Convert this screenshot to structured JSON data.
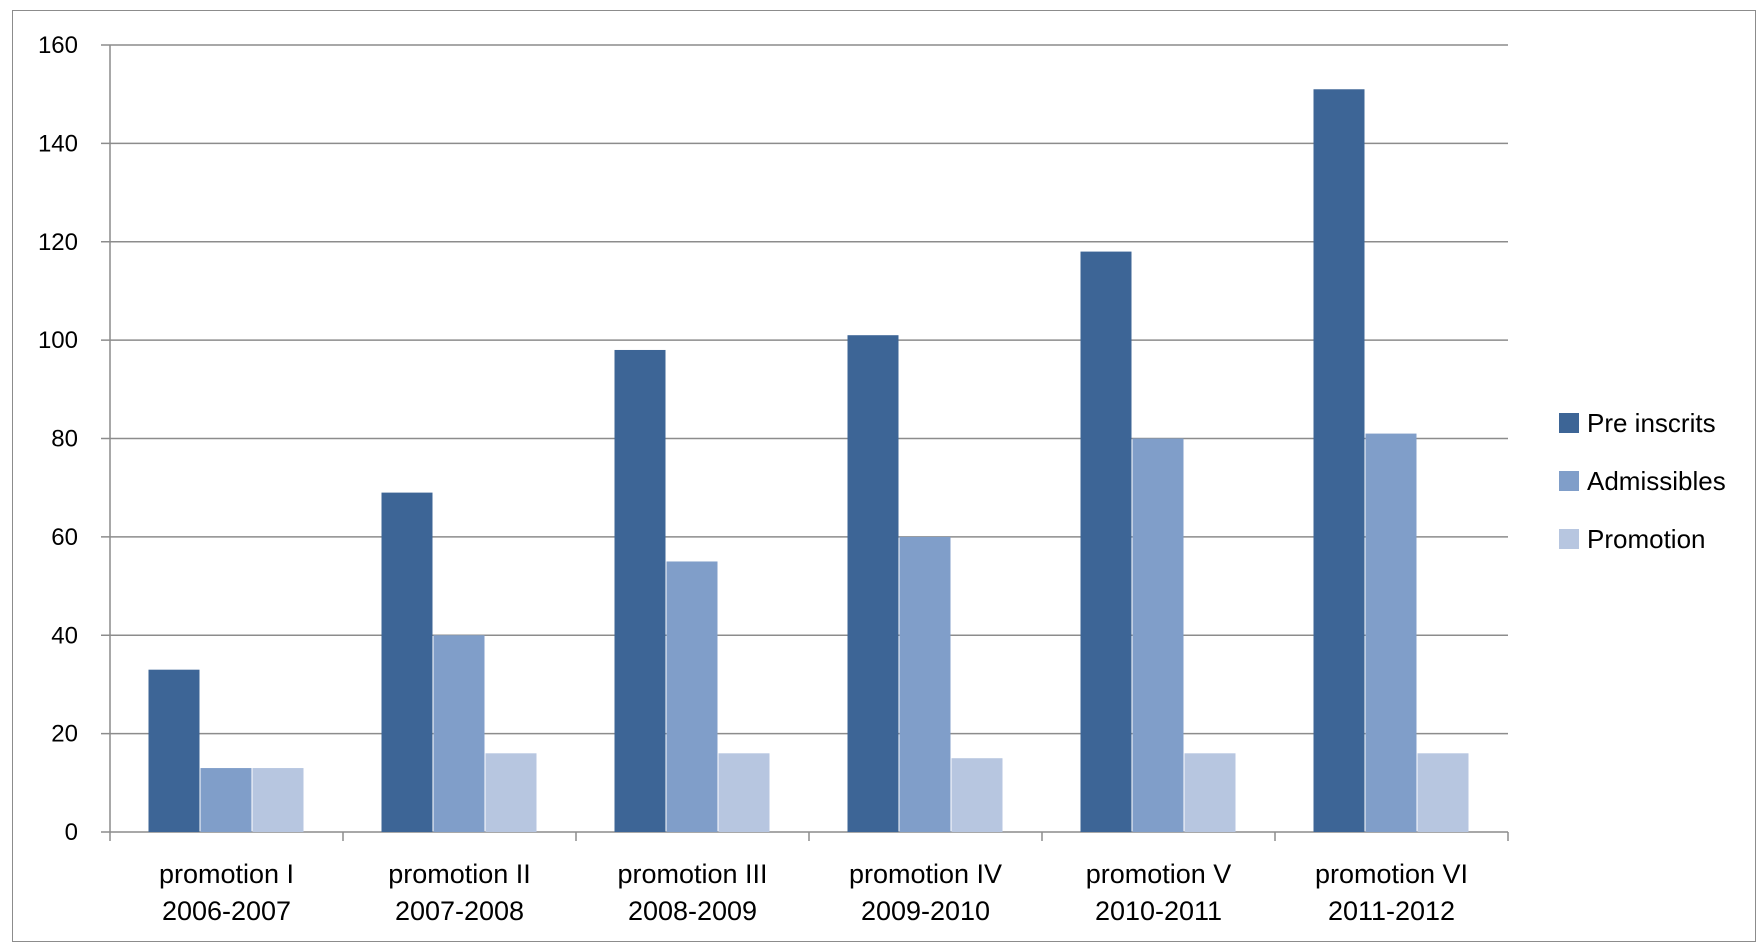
{
  "chart_data": {
    "type": "bar",
    "categories": [
      [
        "promotion I",
        "2006-2007"
      ],
      [
        "promotion II",
        "2007-2008"
      ],
      [
        "promotion III",
        "2008-2009"
      ],
      [
        "promotion IV",
        "2009-2010"
      ],
      [
        "promotion V",
        "2010-2011"
      ],
      [
        "promotion VI",
        "2011-2012"
      ]
    ],
    "series": [
      {
        "name": "Pre inscrits",
        "color": "#3d6596",
        "values": [
          33,
          69,
          98,
          101,
          118,
          151
        ]
      },
      {
        "name": "Admissibles",
        "color": "#809ec9",
        "values": [
          13,
          40,
          55,
          60,
          80,
          81
        ]
      },
      {
        "name": "Promotion",
        "color": "#b7c6e0",
        "values": [
          13,
          16,
          16,
          15,
          16,
          16
        ]
      }
    ],
    "ylim": [
      0,
      160
    ],
    "yticks": [
      0,
      20,
      40,
      60,
      80,
      100,
      120,
      140,
      160
    ],
    "grid": true,
    "legend_position": "right"
  }
}
